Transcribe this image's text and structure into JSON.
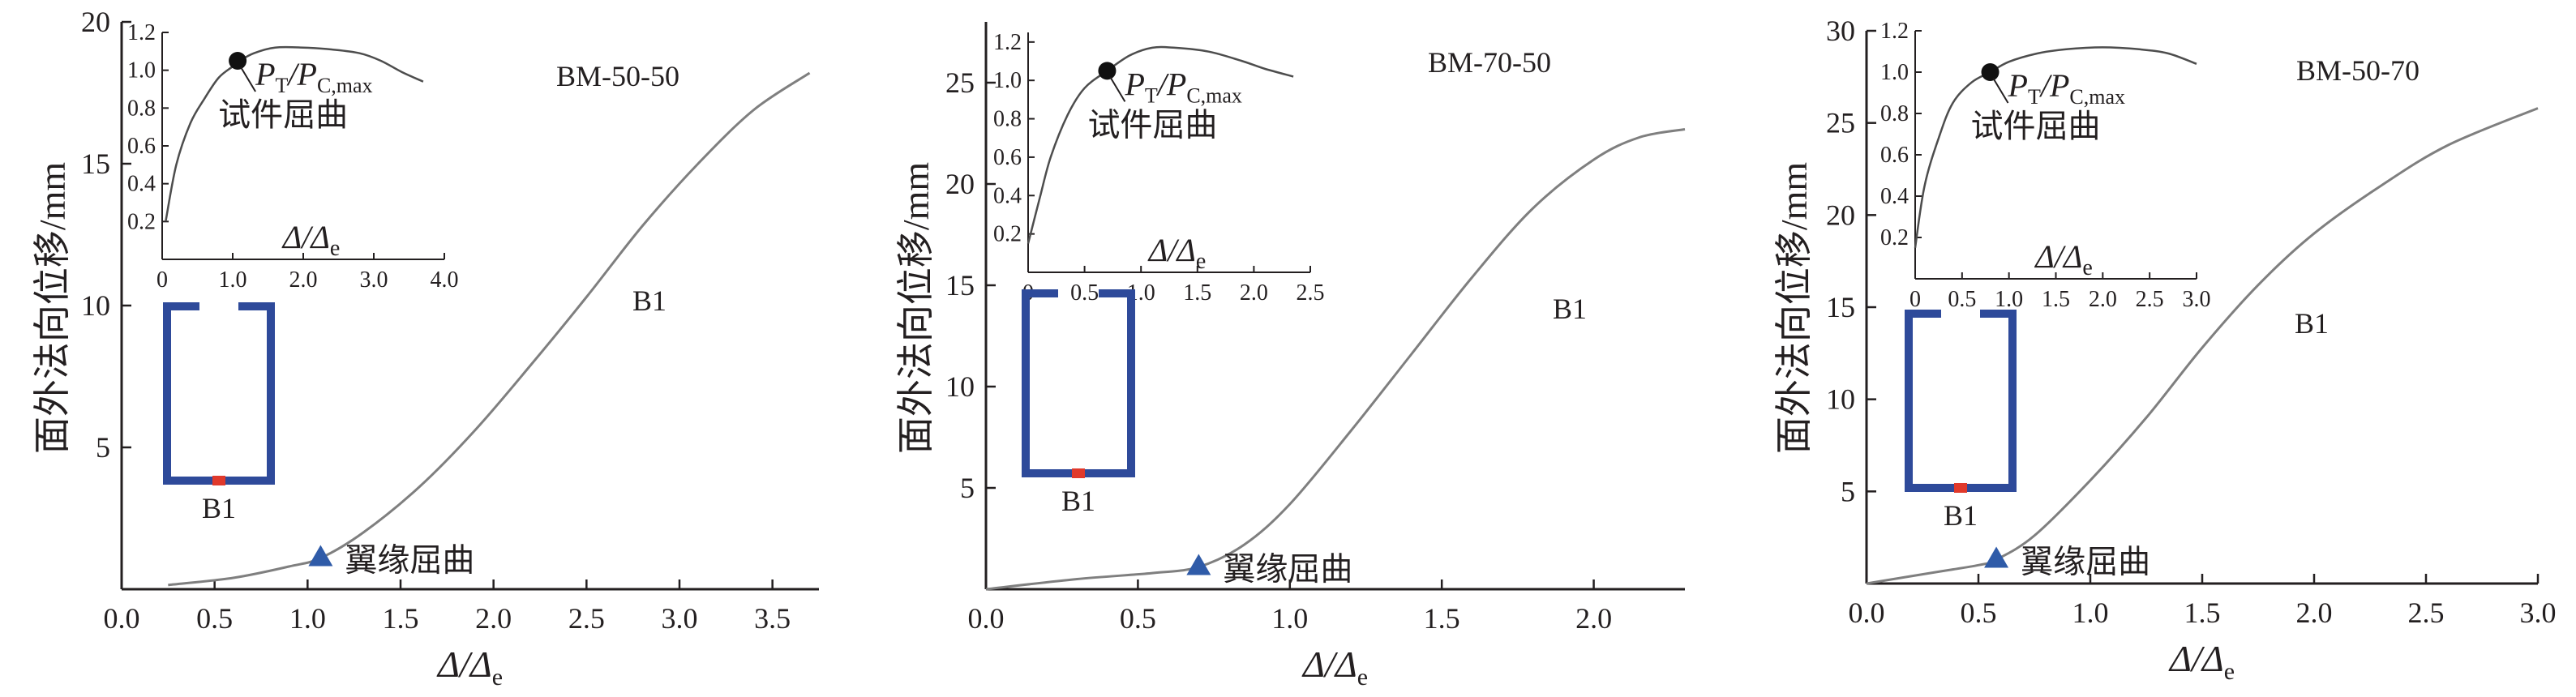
{
  "chart_data": [
    {
      "type": "line",
      "label": "BM-50-50",
      "curve_label": "B1",
      "section_label": "B1",
      "xlabel_base": "Δ/Δ",
      "xlabel_sub": "e",
      "ylabel": "面外法向位移/mm",
      "xlim": [
        0,
        3.75
      ],
      "ylim": [
        0,
        20
      ],
      "xticks": [
        "0.0",
        "0.5",
        "1.0",
        "1.5",
        "2.0",
        "2.5",
        "3.0",
        "3.5"
      ],
      "yticks": [
        "5",
        "10",
        "15",
        "20"
      ],
      "series": [
        {
          "x": [
            0.25,
            0.6,
            0.9,
            1.07,
            1.3,
            1.6,
            1.9,
            2.2,
            2.5,
            2.8,
            3.1,
            3.4,
            3.7
          ],
          "y": [
            0.15,
            0.4,
            0.8,
            1.1,
            2.0,
            3.6,
            5.6,
            7.9,
            10.3,
            12.8,
            15.0,
            16.9,
            18.2
          ]
        }
      ],
      "marker": {
        "x": 1.07,
        "y": 1.1,
        "label": "翼缘屈曲"
      },
      "inset": {
        "xlabel_base": "Δ/Δ",
        "xlabel_sub": "e",
        "xlim": [
          0,
          4.0
        ],
        "ylim": [
          0,
          1.2
        ],
        "xticks": [
          "0",
          "1.0",
          "2.0",
          "3.0",
          "4.0"
        ],
        "yticks": [
          "0.2",
          "0.4",
          "0.6",
          "0.8",
          "1.0",
          "1.2"
        ],
        "series": [
          {
            "x": [
              0.05,
              0.2,
              0.4,
              0.6,
              0.8,
              1.0,
              1.1,
              1.3,
              1.6,
              2.0,
              2.4,
              2.8,
              3.1,
              3.4,
              3.7
            ],
            "y": [
              0.2,
              0.5,
              0.72,
              0.85,
              0.96,
              1.02,
              1.05,
              1.09,
              1.12,
              1.12,
              1.11,
              1.09,
              1.05,
              0.99,
              0.94
            ]
          }
        ],
        "point": {
          "x": 1.07,
          "y": 1.05,
          "ratio_label": "P",
          "ratio_sub1": "T",
          "ratio_mid": "/P",
          "ratio_sub2": "C,max",
          "caption": "试件屈曲"
        }
      }
    },
    {
      "type": "line",
      "label": "BM-70-50",
      "curve_label": "B1",
      "section_label": "B1",
      "xlabel_base": "Δ/Δ",
      "xlabel_sub": "e",
      "ylabel": "面外法向位移/mm",
      "xlim": [
        0,
        2.3
      ],
      "ylim": [
        0,
        28
      ],
      "xticks": [
        "0.0",
        "0.5",
        "1.0",
        "1.5",
        "2.0"
      ],
      "yticks": [
        "5",
        "10",
        "15",
        "20",
        "25"
      ],
      "series": [
        {
          "x": [
            0.0,
            0.3,
            0.55,
            0.7,
            0.85,
            1.0,
            1.2,
            1.4,
            1.6,
            1.8,
            2.0,
            2.15,
            2.3
          ],
          "y": [
            0.0,
            0.5,
            0.8,
            1.1,
            2.2,
            4.2,
            7.8,
            11.6,
            15.4,
            18.8,
            21.2,
            22.3,
            22.7
          ]
        }
      ],
      "marker": {
        "x": 0.7,
        "y": 1.1,
        "label": "翼缘屈曲"
      },
      "inset": {
        "xlabel_base": "Δ/Δ",
        "xlabel_sub": "e",
        "xlim": [
          0,
          2.5
        ],
        "ylim": [
          0,
          1.25
        ],
        "xticks": [
          "0",
          "0.5",
          "1.0",
          "1.5",
          "2.0",
          "2.5"
        ],
        "yticks": [
          "0.2",
          "0.4",
          "0.6",
          "0.8",
          "1.0",
          "1.2"
        ],
        "series": [
          {
            "x": [
              0.0,
              0.1,
              0.2,
              0.35,
              0.5,
              0.7,
              0.9,
              1.1,
              1.3,
              1.6,
              1.9,
              2.1,
              2.35
            ],
            "y": [
              0.15,
              0.38,
              0.6,
              0.82,
              0.96,
              1.05,
              1.13,
              1.17,
              1.17,
              1.15,
              1.1,
              1.06,
              1.02
            ]
          }
        ],
        "point": {
          "x": 0.7,
          "y": 1.05,
          "ratio_label": "P",
          "ratio_sub1": "T",
          "ratio_mid": "/P",
          "ratio_sub2": "C,max",
          "caption": "试件屈曲"
        }
      }
    },
    {
      "type": "line",
      "label": "BM-50-70",
      "curve_label": "B1",
      "section_label": "B1",
      "xlabel_base": "Δ/Δ",
      "xlabel_sub": "e",
      "ylabel": "面外法向位移/mm",
      "xlim": [
        0,
        3.0
      ],
      "ylim": [
        0,
        30
      ],
      "xticks": [
        "0.0",
        "0.5",
        "1.0",
        "1.5",
        "2.0",
        "2.5",
        "3.0"
      ],
      "yticks": [
        "5",
        "10",
        "15",
        "20",
        "25",
        "30"
      ],
      "series": [
        {
          "x": [
            0.0,
            0.3,
            0.5,
            0.58,
            0.75,
            1.0,
            1.25,
            1.5,
            1.75,
            2.0,
            2.3,
            2.6,
            3.0
          ],
          "y": [
            0.0,
            0.6,
            1.0,
            1.3,
            2.6,
            5.6,
            9.0,
            12.8,
            16.2,
            19.0,
            21.6,
            23.8,
            25.8
          ]
        }
      ],
      "marker": {
        "x": 0.58,
        "y": 1.3,
        "label": "翼缘屈曲"
      },
      "inset": {
        "xlabel_base": "Δ/Δ",
        "xlabel_sub": "e",
        "xlim": [
          0,
          3.0
        ],
        "ylim": [
          0,
          1.2
        ],
        "xticks": [
          "0",
          "0.5",
          "1.0",
          "1.5",
          "2.0",
          "2.5",
          "3.0"
        ],
        "yticks": [
          "0.2",
          "0.4",
          "0.6",
          "0.8",
          "1.0",
          "1.2"
        ],
        "series": [
          {
            "x": [
              0.0,
              0.1,
              0.25,
              0.4,
              0.6,
              0.8,
              1.0,
              1.3,
              1.6,
              2.0,
              2.4,
              2.7,
              3.0
            ],
            "y": [
              0.15,
              0.45,
              0.68,
              0.85,
              0.95,
              1.0,
              1.05,
              1.09,
              1.11,
              1.12,
              1.11,
              1.09,
              1.04
            ]
          }
        ],
        "point": {
          "x": 0.8,
          "y": 1.0,
          "ratio_label": "P",
          "ratio_sub1": "T",
          "ratio_mid": "/P",
          "ratio_sub2": "C,max",
          "caption": "试件屈曲"
        }
      }
    }
  ],
  "colors": {
    "axis": "#231f20",
    "curve": "#7f7f7f",
    "inset_curve": "#4d4d4d",
    "section": "#2e4a9a",
    "section_red": "#e0392b",
    "marker": "#2f5ba8",
    "point": "#111111"
  }
}
